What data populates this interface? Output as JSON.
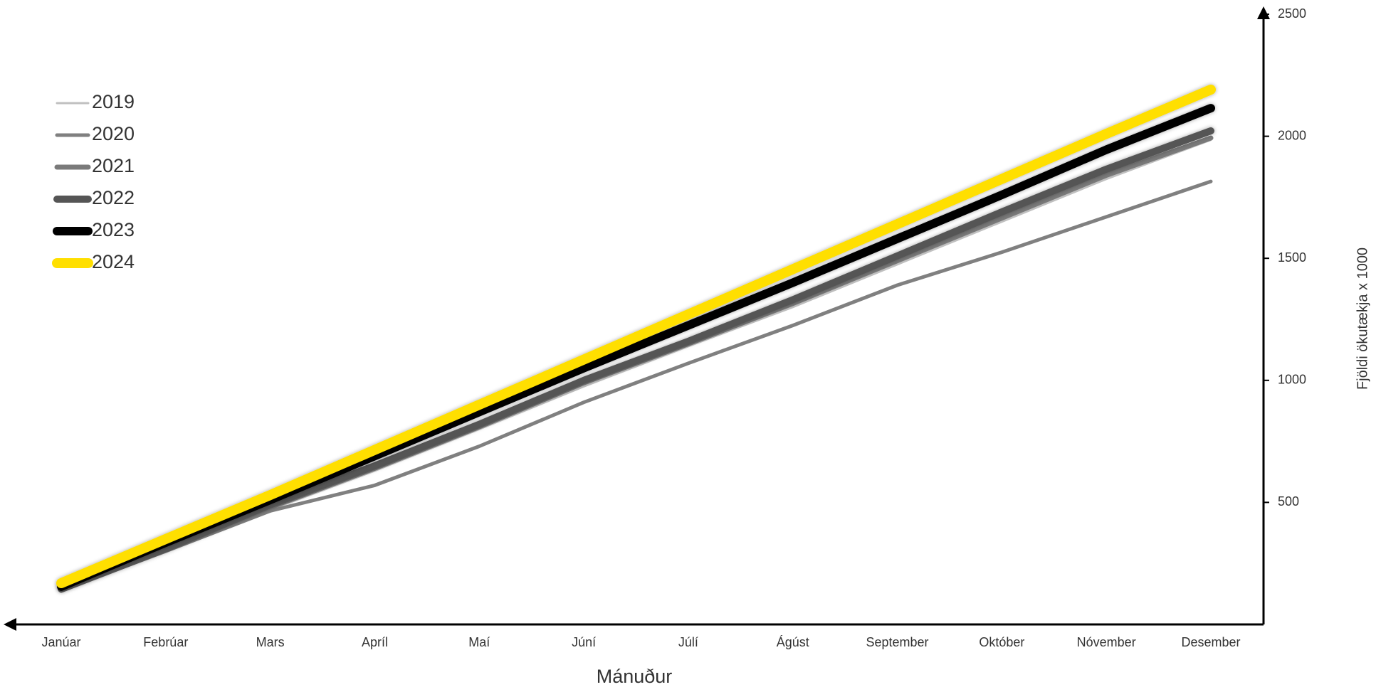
{
  "chart_data": {
    "type": "line",
    "x_label": "Mánuður",
    "y_label": "Fjöldi ökutækja x 1000",
    "categories": [
      "Janúar",
      "Febrúar",
      "Mars",
      "Apríl",
      "Maí",
      "Júní",
      "Júlí",
      "Ágúst",
      "September",
      "Október",
      "Nóvember",
      "Desember"
    ],
    "series": [
      {
        "name": "2019",
        "color": "#c0c0c0",
        "values": [
          140,
          300,
          470,
          630,
          800,
          975,
          1140,
          1300,
          1475,
          1650,
          1825,
          1985
        ]
      },
      {
        "name": "2020",
        "color": "#808080",
        "values": [
          140,
          300,
          465,
          570,
          730,
          910,
          1070,
          1225,
          1390,
          1525,
          1670,
          1815
        ]
      },
      {
        "name": "2021",
        "color": "#7a7a7a",
        "values": [
          140,
          305,
          480,
          640,
          810,
          990,
          1150,
          1315,
          1490,
          1665,
          1840,
          1993
        ]
      },
      {
        "name": "2022",
        "color": "#555555",
        "values": [
          145,
          310,
          490,
          650,
          820,
          1000,
          1160,
          1330,
          1510,
          1690,
          1865,
          2022
        ]
      },
      {
        "name": "2023",
        "color": "#000000",
        "values": [
          155,
          335,
          510,
          690,
          870,
          1050,
          1225,
          1400,
          1580,
          1760,
          1945,
          2115
        ]
      },
      {
        "name": "2024",
        "color": "#ffdf00",
        "values": [
          169,
          350,
          530,
          715,
          900,
          1085,
          1270,
          1455,
          1640,
          1825,
          2010,
          2191
        ]
      }
    ],
    "ylim": [
      0,
      2500
    ],
    "yticks": [
      500,
      1000,
      1500,
      2000,
      2500
    ],
    "y_axis_side": "right",
    "legend": "upper-left",
    "grid": false
  }
}
